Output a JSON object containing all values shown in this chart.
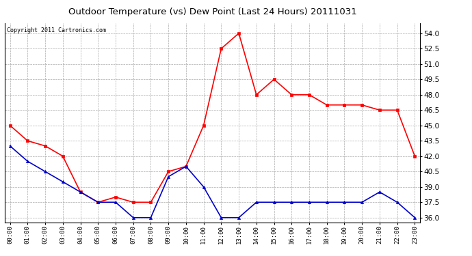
{
  "title": "Outdoor Temperature (vs) Dew Point (Last 24 Hours) 20111031",
  "copyright": "Copyright 2011 Cartronics.com",
  "hours": [
    "00:00",
    "01:00",
    "02:00",
    "03:00",
    "04:00",
    "05:00",
    "06:00",
    "07:00",
    "08:00",
    "09:00",
    "10:00",
    "11:00",
    "12:00",
    "13:00",
    "14:00",
    "15:00",
    "16:00",
    "17:00",
    "18:00",
    "19:00",
    "20:00",
    "21:00",
    "22:00",
    "23:00"
  ],
  "temp": [
    45.0,
    43.5,
    43.0,
    42.0,
    38.5,
    37.5,
    38.0,
    37.5,
    37.5,
    40.5,
    41.0,
    45.0,
    52.5,
    54.0,
    48.0,
    49.5,
    48.0,
    48.0,
    47.0,
    47.0,
    47.0,
    46.5,
    46.5,
    42.0
  ],
  "dewpoint": [
    43.0,
    41.5,
    40.5,
    39.5,
    38.5,
    37.5,
    37.5,
    36.0,
    36.0,
    40.0,
    41.0,
    39.0,
    36.0,
    36.0,
    37.5,
    37.5,
    37.5,
    37.5,
    37.5,
    37.5,
    37.5,
    38.5,
    37.5,
    36.0
  ],
  "temp_color": "#ff0000",
  "dew_color": "#0000cc",
  "bg_color": "#ffffff",
  "grid_color": "#aaaaaa",
  "ylim": [
    35.5,
    55.0
  ],
  "yticks": [
    36.0,
    37.5,
    39.0,
    40.5,
    42.0,
    43.5,
    45.0,
    46.5,
    48.0,
    49.5,
    51.0,
    52.5,
    54.0
  ]
}
